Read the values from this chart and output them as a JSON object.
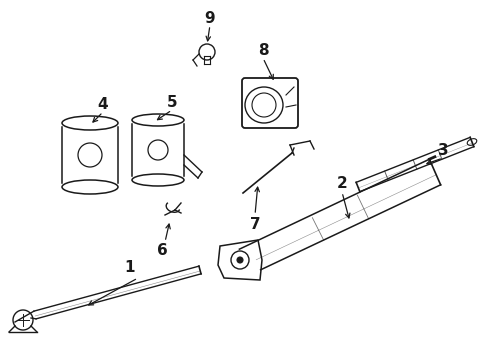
{
  "bg_color": "#ffffff",
  "line_color": "#1a1a1a",
  "label_color": "#000000",
  "label_fontsize": 11,
  "fig_width": 4.9,
  "fig_height": 3.6,
  "dpi": 100
}
